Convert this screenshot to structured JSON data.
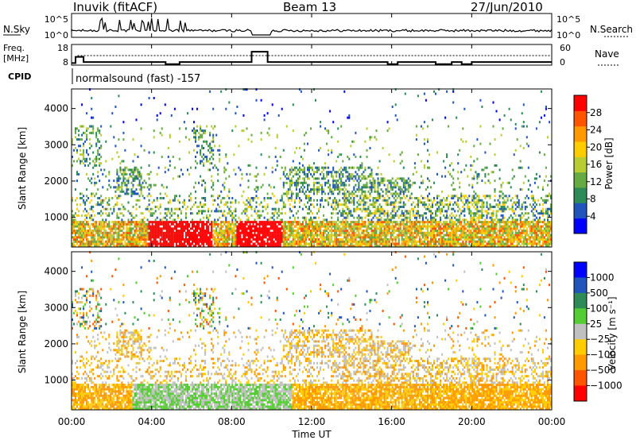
{
  "header": {
    "station": "Inuvik (fitACF)",
    "beam": "Beam 13",
    "date": "27/Jun/2010"
  },
  "noise_panel": {
    "left_label": "N.Sky",
    "right_label": "N.Search",
    "y_ticks": [
      "10^5",
      "10^0"
    ],
    "y_ticks_right": [
      "10^5",
      "10^0"
    ]
  },
  "freq_panel": {
    "left_label_1": "Freq.",
    "left_label_2": "[MHz]",
    "right_label": "Nave",
    "left_ticks": [
      "18",
      "8"
    ],
    "right_ticks": [
      "60",
      "0"
    ]
  },
  "cpid": {
    "label": "CPID",
    "text": "normalsound (fast) -157"
  },
  "colors": {
    "power": [
      "#0000ff",
      "#2255bb",
      "#2e8b57",
      "#66aa44",
      "#b8cc33",
      "#ffcc00",
      "#ff9900",
      "#ff5500",
      "#ff0000"
    ],
    "velocity": [
      "#ff0000",
      "#ff5500",
      "#ff9900",
      "#ffcc00",
      "#c0c0c0",
      "#55cc33",
      "#2e8b57",
      "#2255bb",
      "#0000ff"
    ]
  },
  "chart_data": [
    {
      "type": "heatmap",
      "name": "power",
      "ylabel": "Slant Range [km]",
      "yticks": [
        1000,
        2000,
        3000,
        4000
      ],
      "ylim": [
        180,
        4540
      ],
      "xticks": [
        "00:00",
        "04:00",
        "08:00",
        "12:00",
        "16:00",
        "20:00",
        "00:00"
      ],
      "xlim_hours": [
        0,
        24
      ],
      "colorbar": {
        "label": "Power [dB]",
        "ticks": [
          4,
          8,
          12,
          16,
          20,
          24,
          28
        ],
        "range": [
          0,
          32
        ]
      }
    },
    {
      "type": "heatmap",
      "name": "velocity",
      "ylabel": "Slant Range [km]",
      "yticks": [
        1000,
        2000,
        3000,
        4000
      ],
      "ylim": [
        180,
        4540
      ],
      "xticks": [
        "00:00",
        "04:00",
        "08:00",
        "12:00",
        "16:00",
        "20:00",
        "00:00"
      ],
      "xlabel": "Time UT",
      "xlim_hours": [
        0,
        24
      ],
      "colorbar": {
        "label": "Velocity [m s⁻¹]",
        "ticks": [
          "1000",
          "500",
          "100",
          "25",
          "−25",
          "−100",
          "−500",
          "−1000"
        ]
      }
    }
  ]
}
